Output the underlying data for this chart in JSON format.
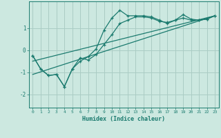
{
  "xlabel": "Humidex (Indice chaleur)",
  "bg_color": "#cce8e0",
  "line_color": "#1a7a6e",
  "grid_color": "#aaccc4",
  "xlim": [
    -0.5,
    23.5
  ],
  "ylim": [
    -2.6,
    2.2
  ],
  "xticks": [
    0,
    1,
    2,
    3,
    4,
    5,
    6,
    7,
    8,
    9,
    10,
    11,
    12,
    13,
    14,
    15,
    16,
    17,
    18,
    19,
    20,
    21,
    22,
    23
  ],
  "yticks": [
    -2,
    -1,
    0,
    1
  ],
  "line1_x": [
    0,
    1,
    2,
    3,
    4,
    5,
    6,
    7,
    8,
    9,
    10,
    11,
    12,
    13,
    14,
    15,
    16,
    17,
    18,
    19,
    20,
    21,
    22,
    23
  ],
  "line1_y": [
    -0.25,
    -0.85,
    -1.15,
    -1.1,
    -1.65,
    -0.85,
    -0.5,
    -0.3,
    0.05,
    0.9,
    1.45,
    1.8,
    1.55,
    1.55,
    1.55,
    1.5,
    1.35,
    1.2,
    1.35,
    1.6,
    1.4,
    1.35,
    1.4,
    1.55
  ],
  "line2_x": [
    0,
    1,
    2,
    3,
    4,
    5,
    6,
    7,
    8,
    9,
    10,
    11,
    12,
    13,
    14,
    15,
    16,
    17,
    18,
    19,
    20,
    21,
    22,
    23
  ],
  "line2_y": [
    -0.25,
    -0.85,
    -1.15,
    -1.1,
    -1.65,
    -0.85,
    -0.35,
    -0.45,
    -0.2,
    0.25,
    0.7,
    1.2,
    1.35,
    1.5,
    1.5,
    1.45,
    1.3,
    1.25,
    1.35,
    1.45,
    1.35,
    1.35,
    1.4,
    1.55
  ],
  "line3_x": [
    0,
    23
  ],
  "line3_y": [
    -1.1,
    1.55
  ],
  "line4_x": [
    0,
    23
  ],
  "line4_y": [
    -0.5,
    1.55
  ]
}
